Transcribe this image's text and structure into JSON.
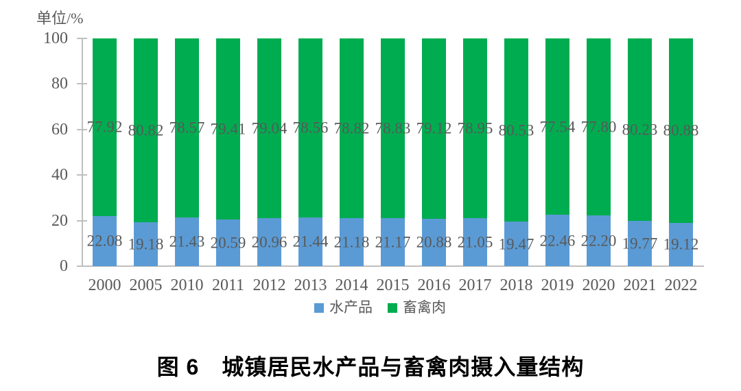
{
  "figure_title": "图 6　城镇居民水产品与畜禽肉摄入量结构",
  "colors": {
    "aquatic_blue": "#5B9BD5",
    "meat_green": "#00AC50",
    "axis_gray": "#BFBFBF",
    "text_gray": "#595959",
    "caption_black": "#000000"
  },
  "legend": {
    "items": [
      {
        "key": "aquatic",
        "label": "水产品",
        "color": "#5B9BD5"
      },
      {
        "key": "meat",
        "label": "畜禽肉",
        "color": "#00AC50"
      }
    ]
  },
  "chart_data": {
    "type": "bar",
    "subtype": "stacked-percentage-column",
    "title": "图 6　城镇居民水产品与畜禽肉摄入量结构",
    "unit_label": "单位/%",
    "categories": [
      "2000",
      "2005",
      "2010",
      "2011",
      "2012",
      "2013",
      "2014",
      "2015",
      "2016",
      "2017",
      "2018",
      "2019",
      "2020",
      "2021",
      "2022"
    ],
    "series": [
      {
        "name": "水产品",
        "color": "#5B9BD5",
        "values": [
          22.08,
          19.18,
          21.43,
          20.59,
          20.96,
          21.44,
          21.18,
          21.17,
          20.88,
          21.05,
          19.47,
          22.46,
          22.2,
          19.77,
          19.12
        ]
      },
      {
        "name": "畜禽肉",
        "color": "#00AC50",
        "values": [
          77.92,
          80.82,
          78.57,
          79.41,
          79.04,
          78.56,
          78.82,
          78.83,
          79.12,
          78.95,
          80.53,
          77.54,
          77.8,
          80.23,
          80.88
        ]
      }
    ],
    "ylim": [
      0,
      100
    ],
    "yticks": [
      0,
      20,
      40,
      60,
      80,
      100
    ],
    "grid": false,
    "legend_position": "bottom",
    "data_labels": true,
    "data_label_decimals": 2
  }
}
